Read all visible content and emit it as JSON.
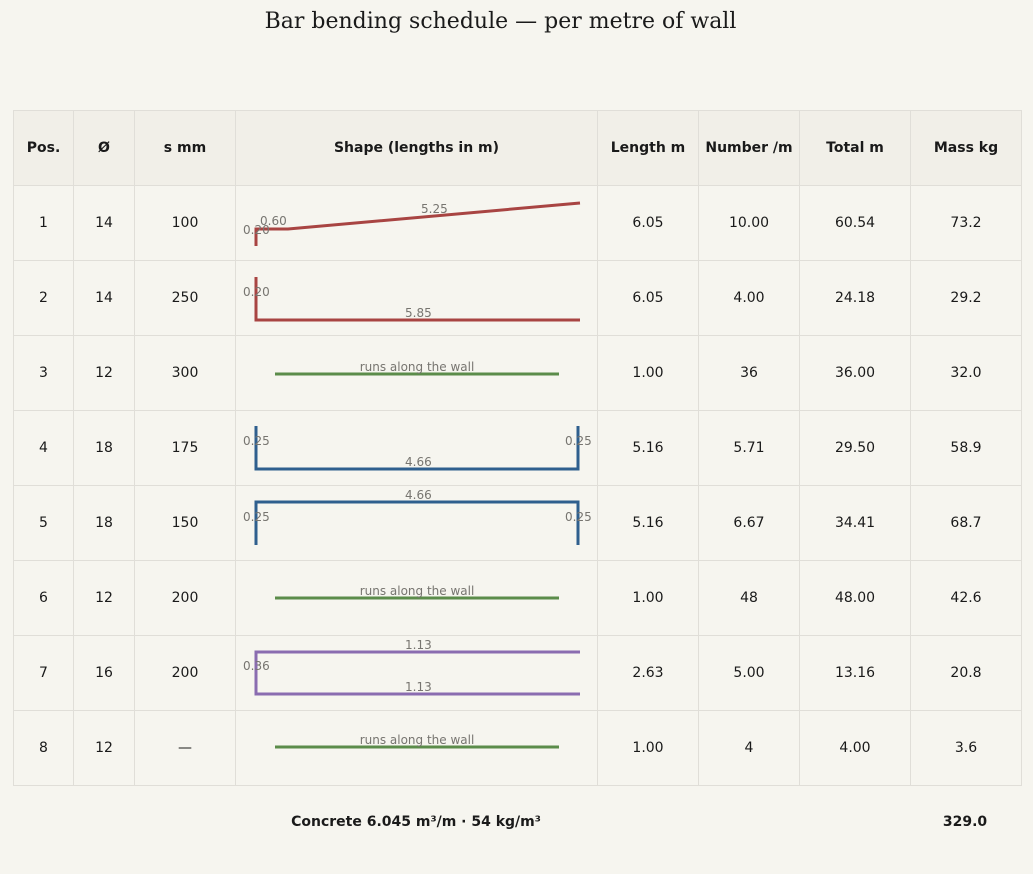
{
  "title": "Bar bending schedule — per metre of wall",
  "colors": {
    "red": "#a84442",
    "green": "#5b8c4a",
    "blue": "#2f5f8e",
    "purple": "#8a6cb0"
  },
  "headers": {
    "pos": "Pos.",
    "dia": "Ø",
    "spacing": "s mm",
    "shape": "Shape (lengths in m)",
    "length": "Length m",
    "number": "Number /m",
    "total": "Total m",
    "mass": "Mass kg"
  },
  "rows": [
    {
      "pos": "1",
      "dia": "14",
      "spacing": "100",
      "length": "6.05",
      "number": "10.00",
      "total": "60.54",
      "mass": "73.2",
      "shape_labels": {
        "a": "0.20",
        "b": "0.60",
        "c": "5.25"
      }
    },
    {
      "pos": "2",
      "dia": "14",
      "spacing": "250",
      "length": "6.05",
      "number": "4.00",
      "total": "24.18",
      "mass": "29.2",
      "shape_labels": {
        "a": "0.20",
        "b": "5.85"
      }
    },
    {
      "pos": "3",
      "dia": "12",
      "spacing": "300",
      "length": "1.00",
      "number": "36",
      "total": "36.00",
      "mass": "32.0",
      "shape_labels": {
        "a": "runs along the wall"
      }
    },
    {
      "pos": "4",
      "dia": "18",
      "spacing": "175",
      "length": "5.16",
      "number": "5.71",
      "total": "29.50",
      "mass": "58.9",
      "shape_labels": {
        "a": "0.25",
        "b": "0.25",
        "c": "4.66"
      }
    },
    {
      "pos": "5",
      "dia": "18",
      "spacing": "150",
      "length": "5.16",
      "number": "6.67",
      "total": "34.41",
      "mass": "68.7",
      "shape_labels": {
        "a": "4.66",
        "b": "0.25",
        "c": "0.25"
      }
    },
    {
      "pos": "6",
      "dia": "12",
      "spacing": "200",
      "length": "1.00",
      "number": "48",
      "total": "48.00",
      "mass": "42.6",
      "shape_labels": {
        "a": "runs along the wall"
      }
    },
    {
      "pos": "7",
      "dia": "16",
      "spacing": "200",
      "length": "2.63",
      "number": "5.00",
      "total": "13.16",
      "mass": "20.8",
      "shape_labels": {
        "a": "1.13",
        "b": "0.36",
        "c": "1.13"
      }
    },
    {
      "pos": "8",
      "dia": "12",
      "spacing": "—",
      "length": "1.00",
      "number": "4",
      "total": "4.00",
      "mass": "3.6",
      "shape_labels": {
        "a": "runs along the wall"
      }
    }
  ],
  "footer": {
    "concrete": "Concrete 6.045 m³/m · 54 kg/m³",
    "total_mass": "329.0"
  }
}
